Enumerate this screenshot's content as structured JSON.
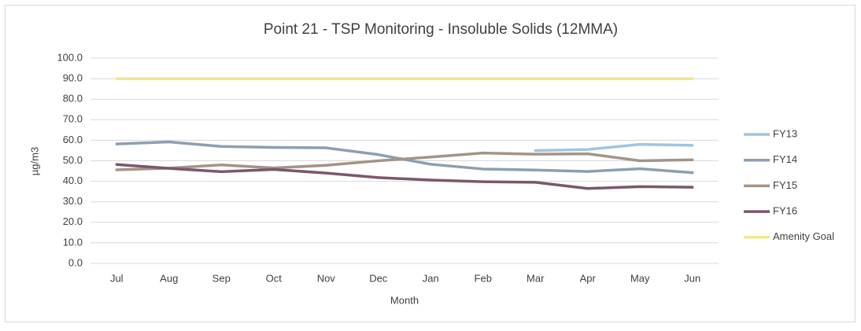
{
  "chart_data": {
    "type": "line",
    "title": "Point 21 - TSP Monitoring - Insoluble Solids (12MMA)",
    "x_label": "Month",
    "y_label": "µg/m3",
    "categories": [
      "Jul",
      "Aug",
      "Sep",
      "Oct",
      "Nov",
      "Dec",
      "Jan",
      "Feb",
      "Mar",
      "Apr",
      "May",
      "Jun"
    ],
    "series": [
      {
        "name": "FY13",
        "color": "#9fc5e3",
        "values": [
          null,
          null,
          null,
          null,
          null,
          null,
          null,
          null,
          55,
          55.5,
          58,
          57.5
        ]
      },
      {
        "name": "FY14",
        "color": "#8c9fb1",
        "values": [
          58.2,
          59.2,
          57,
          56.5,
          56.3,
          53,
          48.3,
          46,
          45.5,
          44.8,
          46.1,
          44.2
        ]
      },
      {
        "name": "FY15",
        "color": "#a39487",
        "values": [
          45.6,
          46.4,
          48,
          46.5,
          47.8,
          50,
          51.8,
          53.8,
          53.2,
          53.4,
          50,
          50.5
        ]
      },
      {
        "name": "FY16",
        "color": "#7d566b",
        "values": [
          48.2,
          46.3,
          44.7,
          45.8,
          44,
          41.8,
          40.6,
          39.8,
          39.5,
          36.5,
          37.4,
          37.1
        ]
      },
      {
        "name": "Amenity Goal",
        "color": "#f1e68c",
        "values": [
          90,
          90,
          90,
          90,
          90,
          90,
          90,
          90,
          90,
          90,
          90,
          90
        ]
      }
    ],
    "ylim": [
      0,
      100
    ],
    "yticks": [
      {
        "value": 0,
        "label": "0.0"
      },
      {
        "value": 10,
        "label": "10.0"
      },
      {
        "value": 20,
        "label": "20.0"
      },
      {
        "value": 30,
        "label": "30.0"
      },
      {
        "value": 40,
        "label": "40.0"
      },
      {
        "value": 50,
        "label": "50.0"
      },
      {
        "value": 60,
        "label": "60.0"
      },
      {
        "value": 70,
        "label": "70.0"
      },
      {
        "value": 80,
        "label": "80.0"
      },
      {
        "value": 90,
        "label": "90.0"
      },
      {
        "value": 100,
        "label": "100.0"
      }
    ],
    "grid": true,
    "legend": "right"
  }
}
